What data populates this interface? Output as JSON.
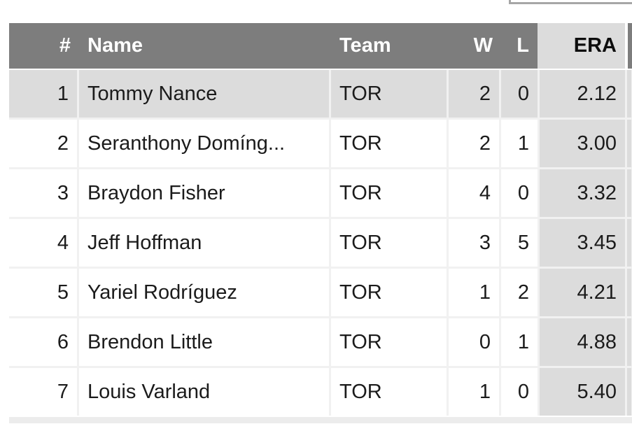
{
  "table": {
    "columns": [
      {
        "key": "rank",
        "label": "#"
      },
      {
        "key": "name",
        "label": "Name"
      },
      {
        "key": "team",
        "label": "Team"
      },
      {
        "key": "wins",
        "label": "W"
      },
      {
        "key": "losses",
        "label": "L"
      },
      {
        "key": "era",
        "label": "ERA"
      }
    ],
    "sorted_column": "ERA",
    "selected_row_rank": "1",
    "rows": [
      {
        "rank": "1",
        "name": "Tommy Nance",
        "team": "TOR",
        "wins": "2",
        "losses": "0",
        "era": "2.12",
        "selected": true
      },
      {
        "rank": "2",
        "name": "Seranthony Domíng...",
        "team": "TOR",
        "wins": "2",
        "losses": "1",
        "era": "3.00",
        "selected": false
      },
      {
        "rank": "3",
        "name": "Braydon Fisher",
        "team": "TOR",
        "wins": "4",
        "losses": "0",
        "era": "3.32",
        "selected": false
      },
      {
        "rank": "4",
        "name": "Jeff Hoffman",
        "team": "TOR",
        "wins": "3",
        "losses": "5",
        "era": "3.45",
        "selected": false
      },
      {
        "rank": "5",
        "name": "Yariel Rodríguez",
        "team": "TOR",
        "wins": "1",
        "losses": "2",
        "era": "4.21",
        "selected": false
      },
      {
        "rank": "6",
        "name": "Brendon Little",
        "team": "TOR",
        "wins": "0",
        "losses": "1",
        "era": "4.88",
        "selected": false
      },
      {
        "rank": "7",
        "name": "Louis Varland",
        "team": "TOR",
        "wins": "1",
        "losses": "0",
        "era": "5.40",
        "selected": false
      }
    ]
  },
  "colors": {
    "header_background": "#7d7d7d",
    "header_text": "#ffffff",
    "highlight_background": "#dcdcdc",
    "row_background": "#ffffff",
    "body_text": "#1b1b1b",
    "grid_gap": "#f1f1f1",
    "bottom_strip": "#ececec",
    "cutoff_control_border": "#a6a6a6"
  }
}
